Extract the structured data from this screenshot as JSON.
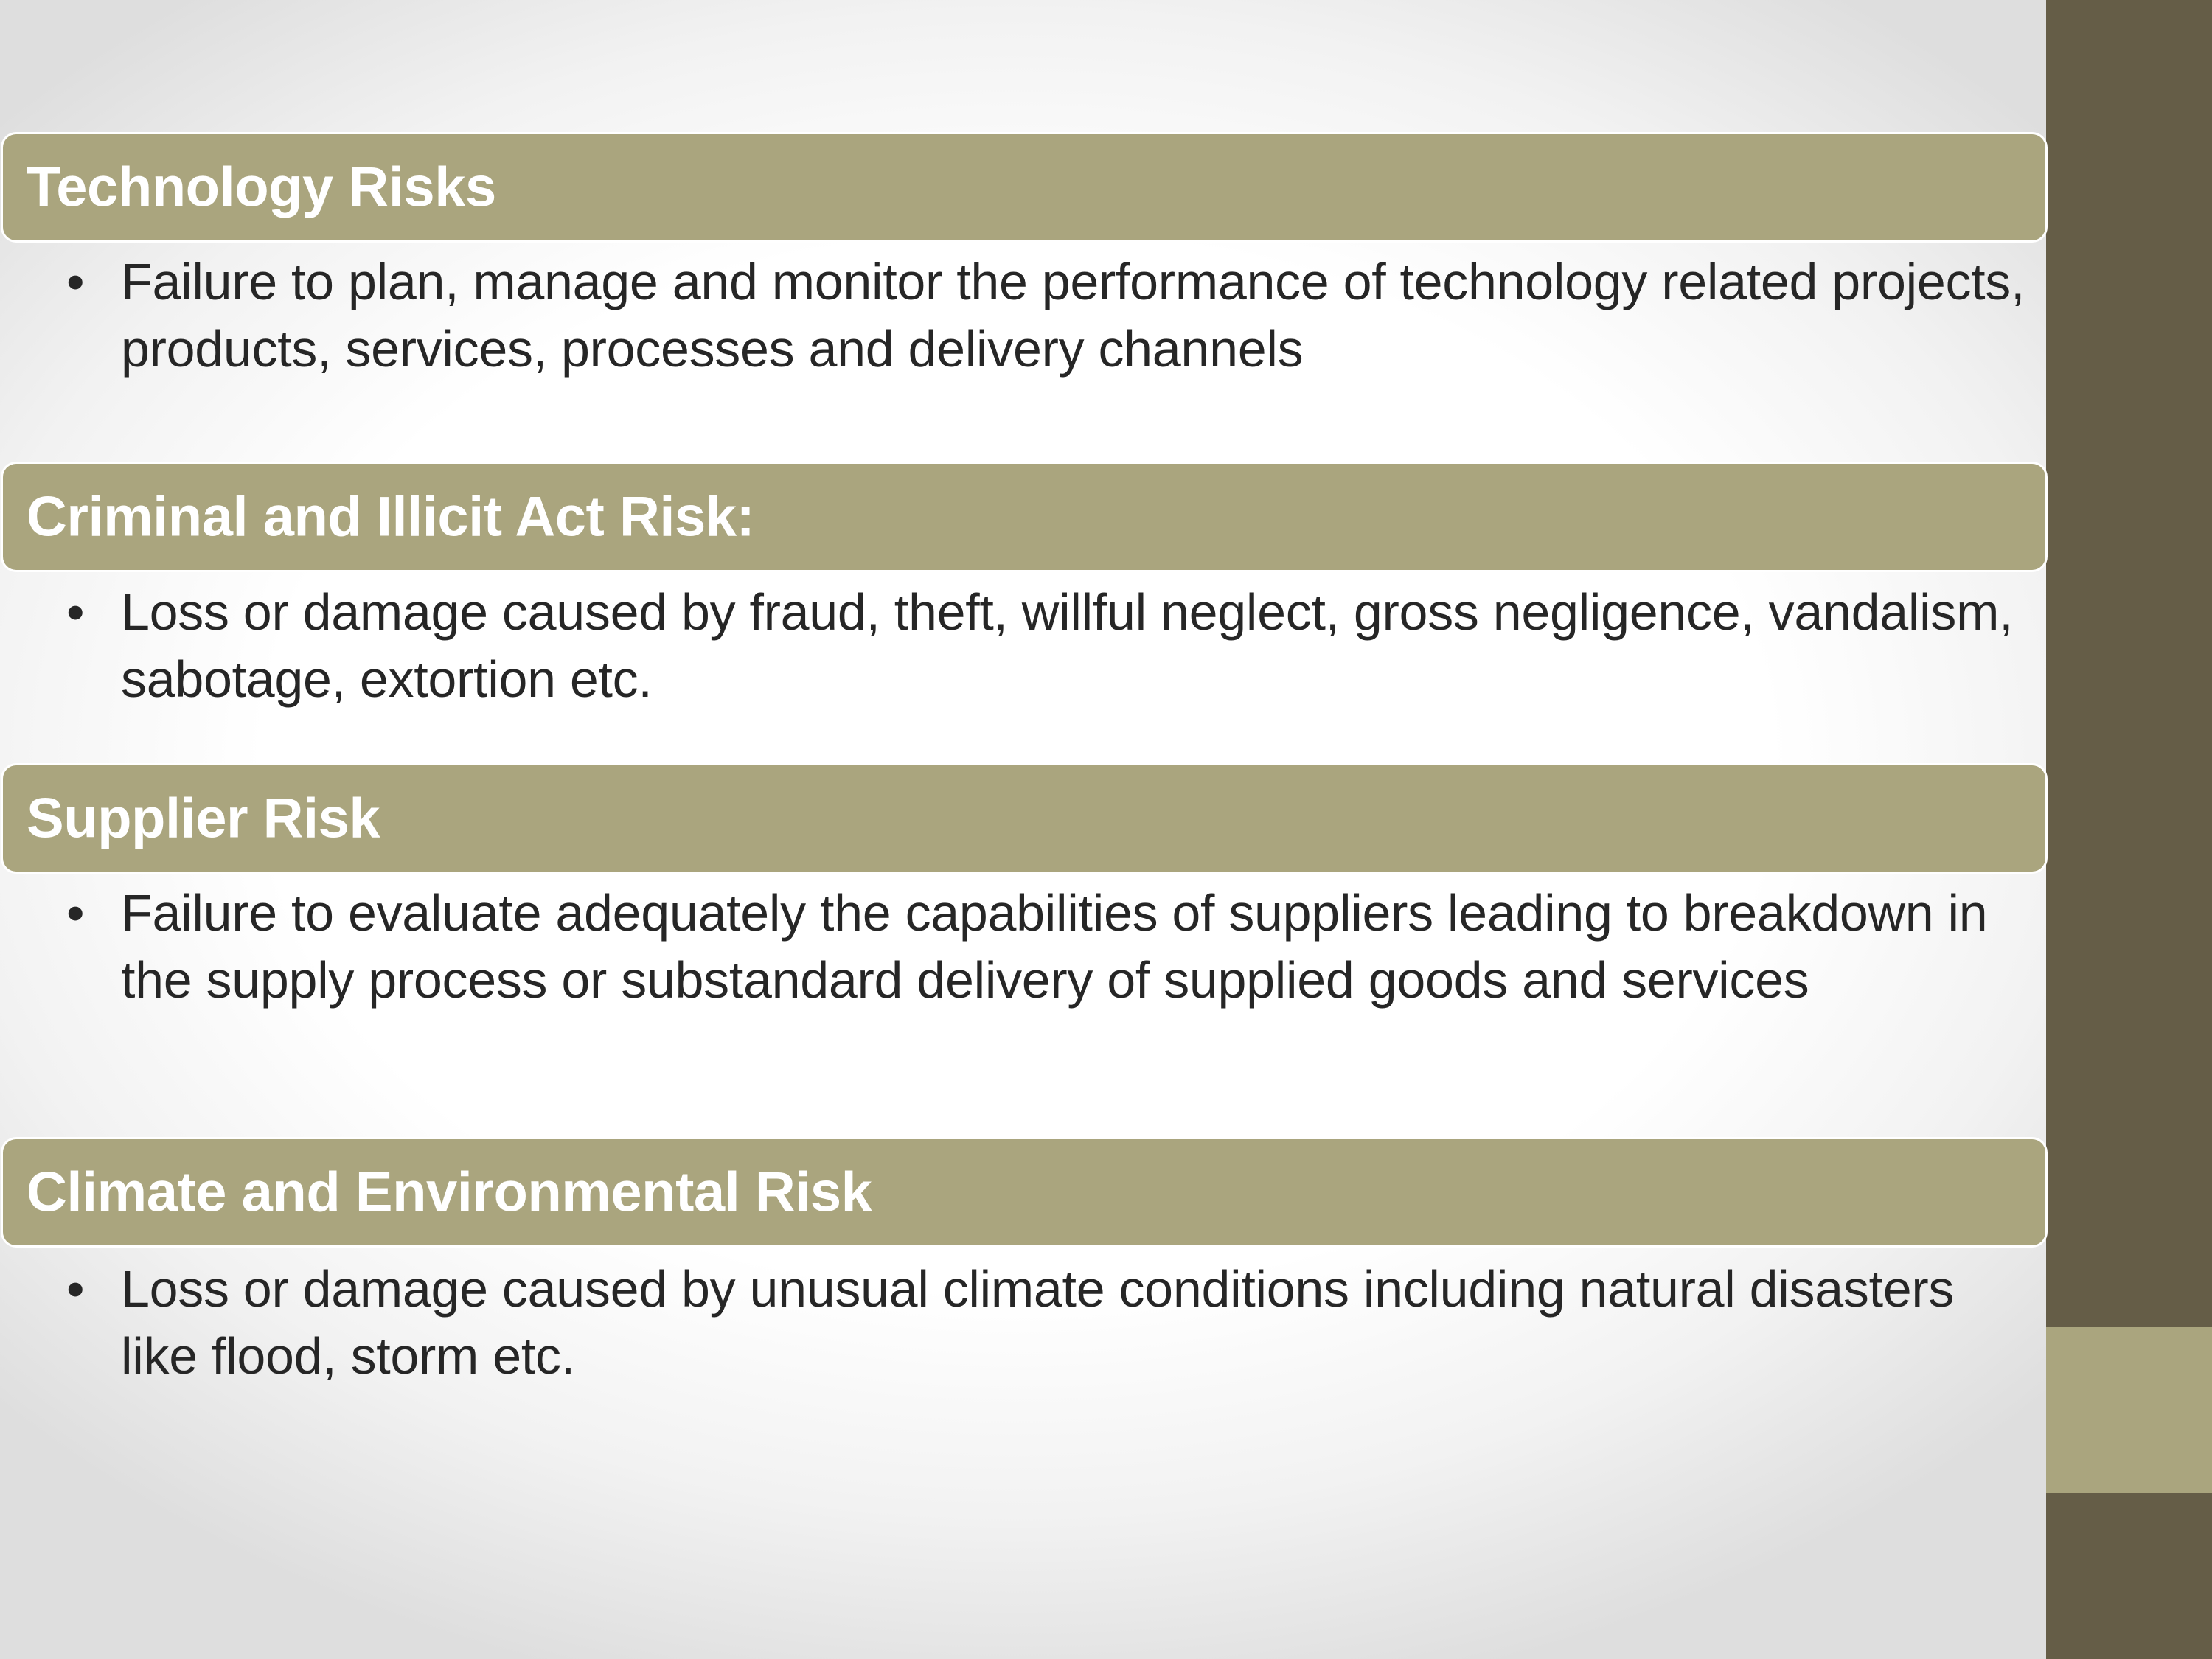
{
  "sections": [
    {
      "title": "Technology Risks",
      "bullet": "Failure to plan, manage and monitor the performance of technology related projects, products, services, processes and delivery channels"
    },
    {
      "title": "Criminal and Illicit Act Risk:",
      "bullet": "Loss or damage caused by fraud, theft, willful neglect, gross negligence, vandalism, sabotage, extortion etc."
    },
    {
      "title": "Supplier Risk",
      "bullet": "Failure to evaluate adequately the capabilities of suppliers leading to breakdown in the supply process or substandard delivery of supplied goods and services"
    },
    {
      "title": "Climate and Environmental Risk",
      "bullet": "Loss or damage caused by unusual climate conditions including natural disasters like flood, storm etc."
    }
  ],
  "colors": {
    "band": "#aaa57e",
    "sidebar": "#655d47",
    "title_text": "#ffffff",
    "body_text": "#262626"
  }
}
